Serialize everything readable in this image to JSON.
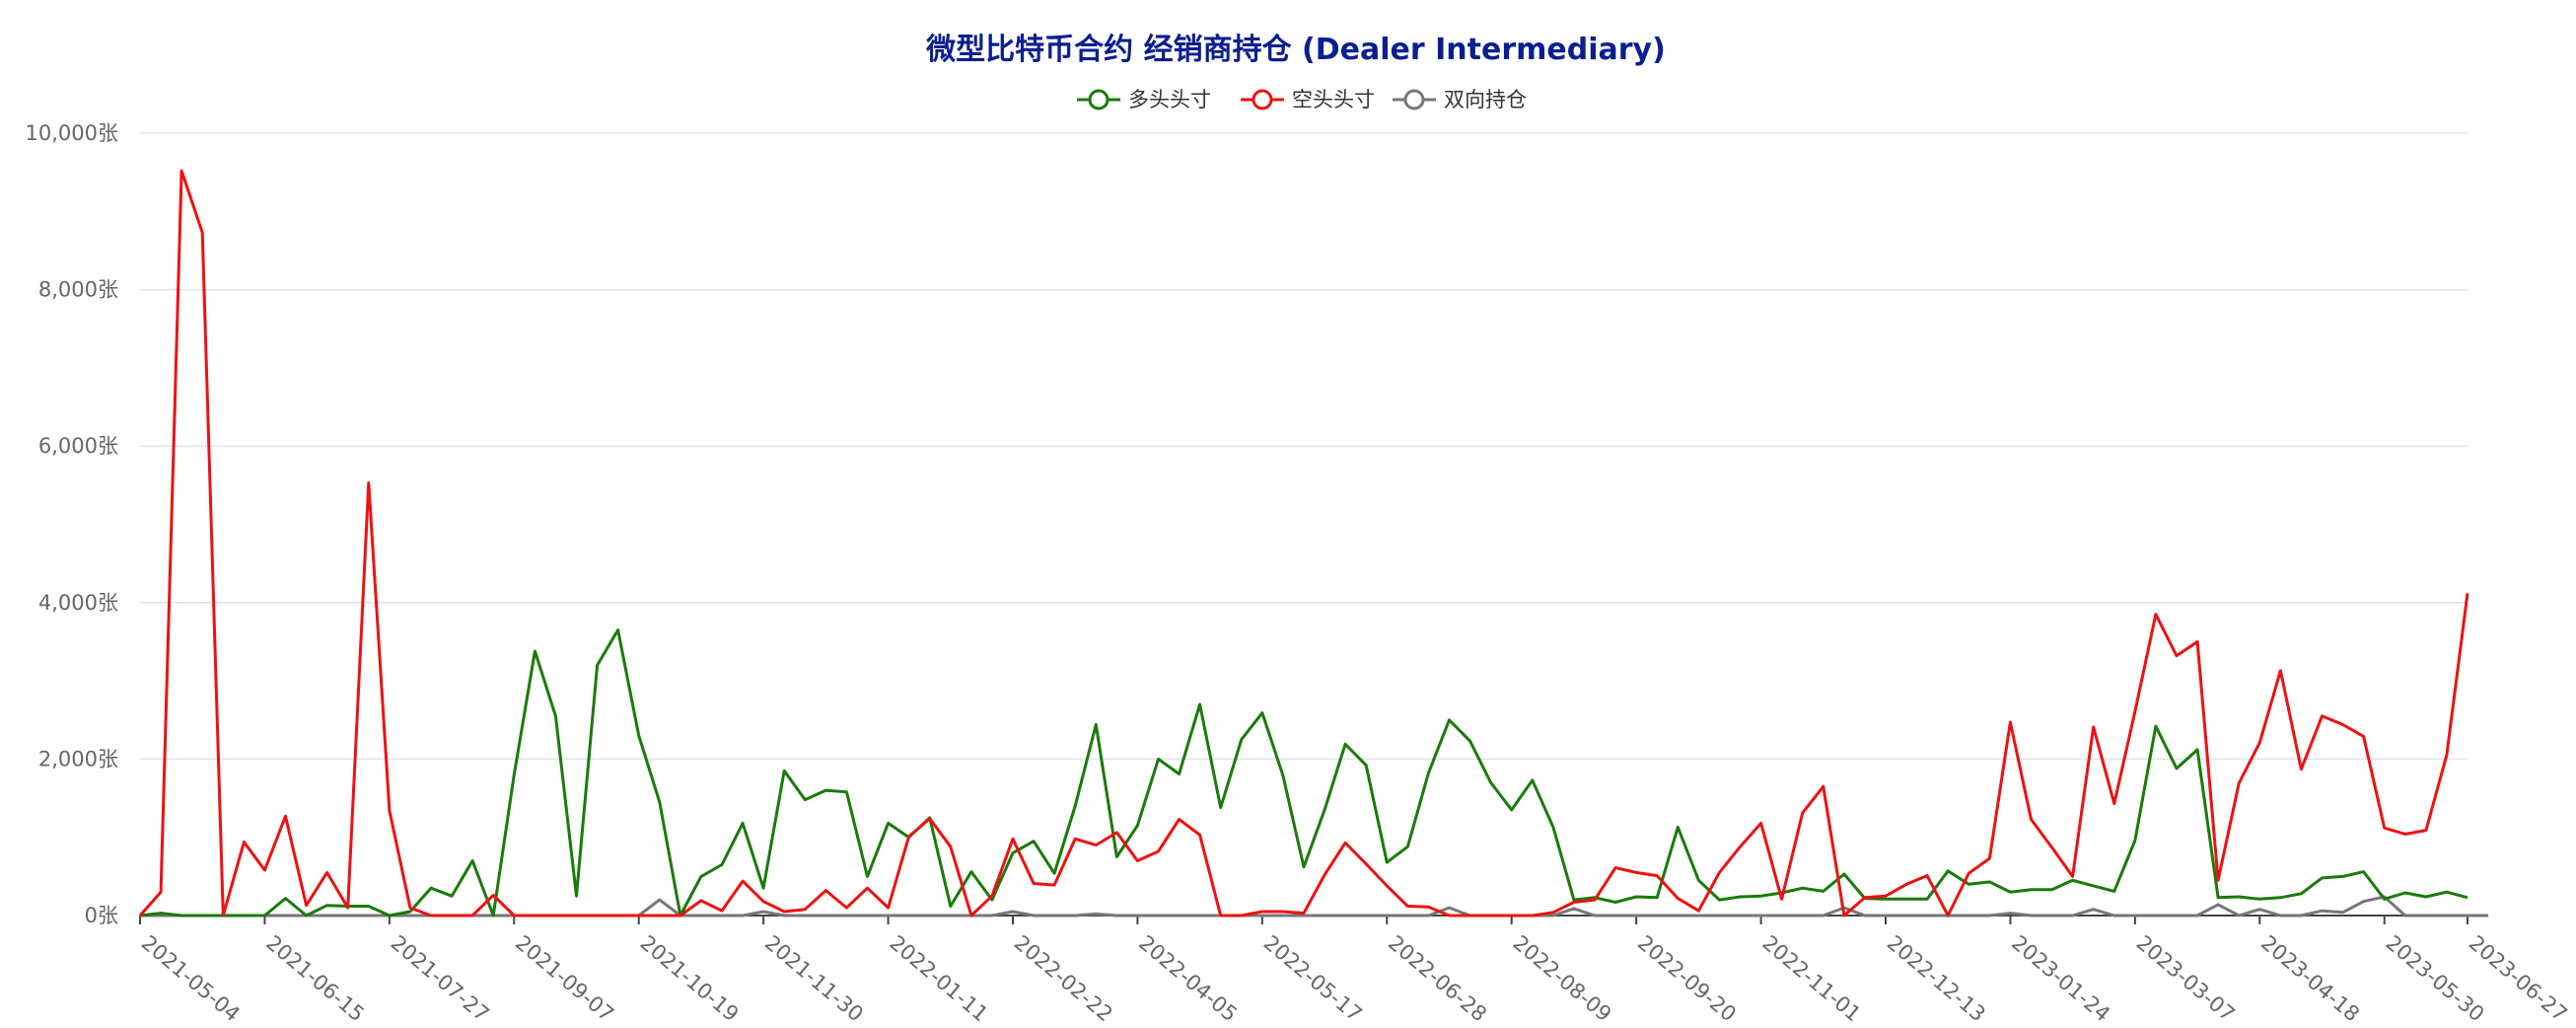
{
  "chart_data": {
    "type": "line",
    "title": "微型比特币合约 经销商持仓 (Dealer Intermediary)",
    "y_unit_suffix": "张",
    "ylim": [
      0,
      10000
    ],
    "yticks": [
      "0张",
      "2,000张",
      "4,000张",
      "6,000张",
      "8,000张",
      "10,000张"
    ],
    "ytick_values": [
      0,
      2000,
      4000,
      6000,
      8000,
      10000
    ],
    "x_tick_labels": [
      "2021-05-04",
      "2021-06-15",
      "2021-07-27",
      "2021-09-07",
      "2021-10-19",
      "2021-11-30",
      "2022-01-11",
      "2022-02-22",
      "2022-04-05",
      "2022-05-17",
      "2022-06-28",
      "2022-08-09",
      "2022-09-20",
      "2022-11-01",
      "2022-12-13",
      "2023-01-24",
      "2023-03-07",
      "2023-04-18",
      "2023-05-30",
      "2023-06-27"
    ],
    "x_tick_index": [
      0,
      6,
      12,
      18,
      24,
      30,
      36,
      42,
      48,
      54,
      60,
      66,
      72,
      78,
      84,
      90,
      96,
      102,
      108,
      112
    ],
    "grid": true,
    "legend_position": "top-center",
    "colors": {
      "long": "#1a7a0a",
      "short": "#ee1111",
      "spread": "#777777",
      "grid": "#e3e3ef",
      "axis": "#444444",
      "title": "#0a1f8f"
    },
    "series": [
      {
        "name": "多头头寸",
        "key": "long",
        "values": [
          0,
          30,
          0,
          0,
          0,
          0,
          0,
          220,
          0,
          130,
          120,
          120,
          0,
          50,
          350,
          250,
          700,
          0,
          1800,
          3380,
          2550,
          250,
          3200,
          3650,
          2300,
          1450,
          0,
          500,
          650,
          1180,
          350,
          1850,
          1480,
          1600,
          1580,
          500,
          1180,
          1000,
          1250,
          120,
          560,
          200,
          800,
          950,
          540,
          1400,
          2440,
          750,
          1150,
          2000,
          1810,
          2700,
          1380,
          2250,
          2590,
          1790,
          620,
          1350,
          2190,
          1920,
          680,
          880,
          1820,
          2500,
          2230,
          1700,
          1350,
          1730,
          1130,
          200,
          230,
          170,
          240,
          230,
          1130,
          450,
          200,
          240,
          250,
          290,
          350,
          310,
          530,
          220,
          210,
          210,
          210,
          570,
          400,
          430,
          300,
          330,
          330,
          450,
          380,
          310,
          960,
          2420,
          1880,
          2120,
          230,
          240,
          210,
          230,
          280,
          480,
          500,
          560,
          210,
          290,
          240,
          300,
          230
        ],
        "values_precision": "approximate"
      },
      {
        "name": "空头头寸",
        "key": "short",
        "values": [
          0,
          300,
          9520,
          8730,
          0,
          940,
          580,
          1270,
          130,
          550,
          100,
          5530,
          1340,
          100,
          0,
          0,
          0,
          260,
          0,
          0,
          0,
          0,
          0,
          0,
          0,
          0,
          0,
          190,
          60,
          440,
          180,
          50,
          80,
          320,
          100,
          350,
          100,
          1010,
          1240,
          880,
          0,
          250,
          980,
          410,
          390,
          980,
          900,
          1060,
          700,
          820,
          1230,
          1030,
          0,
          0,
          50,
          50,
          30,
          520,
          930,
          660,
          380,
          120,
          110,
          0,
          0,
          0,
          0,
          0,
          40,
          170,
          200,
          610,
          550,
          510,
          220,
          60,
          550,
          880,
          1180,
          210,
          1310,
          1650,
          0,
          230,
          250,
          400,
          510,
          0,
          540,
          730,
          2470,
          1230,
          870,
          500,
          2410,
          1430,
          2610,
          3850,
          3320,
          3500,
          450,
          1690,
          2210,
          3130,
          1870,
          2550,
          2440,
          2290,
          1120,
          1040,
          1090,
          2050,
          4120
        ]
      },
      {
        "name": "双向持仓",
        "key": "spread",
        "values": [
          0,
          0,
          0,
          0,
          0,
          0,
          0,
          0,
          0,
          0,
          0,
          0,
          0,
          0,
          0,
          0,
          0,
          0,
          0,
          0,
          0,
          0,
          0,
          0,
          0,
          200,
          0,
          0,
          0,
          0,
          50,
          0,
          0,
          0,
          0,
          0,
          0,
          0,
          0,
          0,
          0,
          0,
          50,
          0,
          0,
          0,
          20,
          0,
          0,
          0,
          0,
          0,
          0,
          0,
          0,
          0,
          0,
          0,
          0,
          0,
          0,
          0,
          0,
          100,
          0,
          0,
          0,
          0,
          0,
          90,
          0,
          0,
          0,
          0,
          0,
          0,
          0,
          0,
          0,
          0,
          0,
          0,
          100,
          0,
          0,
          0,
          0,
          0,
          0,
          0,
          30,
          0,
          0,
          0,
          80,
          0,
          0,
          0,
          0,
          0,
          140,
          0,
          80,
          0,
          0,
          60,
          40,
          180,
          240,
          0,
          0,
          0,
          0,
          0
        ]
      }
    ]
  }
}
